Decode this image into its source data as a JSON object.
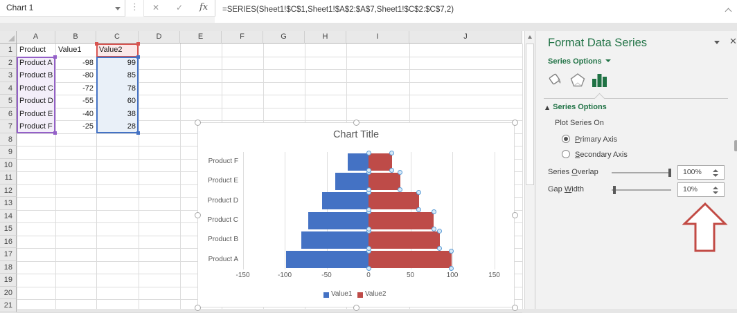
{
  "topbar": {
    "name_box": "Chart 1",
    "cancel": "✕",
    "enter": "✓",
    "fx": "fx",
    "grip": "⋮",
    "formula": "=SERIES(Sheet1!$C$1,Sheet1!$A$2:$A$7,Sheet1!$C$2:$C$7,2)"
  },
  "grid": {
    "columns": [
      "A",
      "B",
      "C",
      "D",
      "E",
      "F",
      "G",
      "H",
      "I",
      "J"
    ],
    "row_numbers": [
      "1",
      "2",
      "3",
      "4",
      "5",
      "6",
      "7",
      "8",
      "9",
      "10",
      "11",
      "12",
      "13",
      "14",
      "15",
      "16",
      "17",
      "18",
      "19",
      "20",
      "21"
    ]
  },
  "sheet": {
    "header_row": [
      "Product",
      "Value1",
      "Value2"
    ],
    "data_rows": [
      [
        "Product A",
        "-98",
        "99"
      ],
      [
        "Product B",
        "-80",
        "85"
      ],
      [
        "Product C",
        "-72",
        "78"
      ],
      [
        "Product D",
        "-55",
        "60"
      ],
      [
        "Product E",
        "-40",
        "38"
      ],
      [
        "Product F",
        "-25",
        "28"
      ]
    ],
    "range_colors": {
      "categories_border": "#9460C8",
      "categories_fill": "#F3EEF9",
      "name_border": "#D85450",
      "name_fill": "#FBE9E9",
      "values_border": "#4472C4",
      "values_fill": "#E9F0F8"
    }
  },
  "chart_data": {
    "type": "bar",
    "orientation": "horizontal",
    "title": "Chart Title",
    "categories": [
      "Product A",
      "Product B",
      "Product C",
      "Product D",
      "Product E",
      "Product F"
    ],
    "series": [
      {
        "name": "Value1",
        "color": "#4472C4",
        "values": [
          -98,
          -80,
          -72,
          -55,
          -40,
          -25
        ]
      },
      {
        "name": "Value2",
        "color": "#BE4B48",
        "values": [
          99,
          85,
          78,
          60,
          38,
          28
        ]
      }
    ],
    "x_ticks": [
      -150,
      -100,
      -50,
      0,
      50,
      100,
      150
    ],
    "xlim": [
      -150,
      150
    ],
    "grid": true,
    "legend_position": "bottom",
    "selected_series": "Value2"
  },
  "panel": {
    "title": "Format Data Series",
    "dropdown_label": "Series Options",
    "section": "Series Options",
    "plot_series_on": "Plot Series On",
    "primary_axis": {
      "key": "P",
      "rest": "rimary Axis"
    },
    "secondary_axis": {
      "key": "S",
      "rest": "econdary Axis"
    },
    "series_overlap": {
      "pre": "Series ",
      "key": "O",
      "rest": "verlap"
    },
    "gap_width": {
      "pre": "Gap ",
      "key": "W",
      "rest": "idth"
    },
    "series_overlap_value": "100%",
    "gap_width_value": "10%",
    "accent_green": "#217346",
    "arrow_color": "#C24B45",
    "icons": [
      "fill-line-icon",
      "effects-icon",
      "series-options-icon"
    ]
  }
}
